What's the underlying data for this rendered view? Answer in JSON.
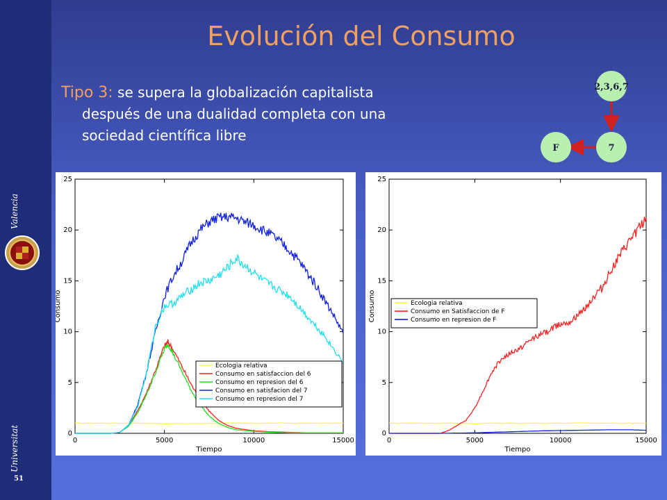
{
  "sidebar": {
    "university_word1": "Universitat",
    "university_word2": "Valencia",
    "page_number": "51",
    "seal_icon": "university-seal-icon"
  },
  "title": "Evolución del Consumo",
  "subtitle": {
    "tipo_label": "Tipo 3:",
    "line1_rest": " se supera la globalización capitalista",
    "line2": "después de una dualidad completa con una",
    "line3": "sociedad científica libre"
  },
  "flow_diagram": {
    "nodes": [
      {
        "id": "top",
        "label": "2,3,6,7"
      },
      {
        "id": "seven",
        "label": "7"
      },
      {
        "id": "f",
        "label": "F"
      }
    ],
    "edges": [
      [
        "top",
        "seven"
      ],
      [
        "seven",
        "f"
      ]
    ],
    "node_color": "#b8f0b0",
    "arrow_color": "#d02020"
  },
  "chart_data": [
    {
      "type": "line",
      "xlabel": "Tiempo",
      "ylabel": "Consumo",
      "xlim": [
        0,
        15000
      ],
      "ylim": [
        0,
        25
      ],
      "xticks": [
        0,
        5000,
        10000,
        15000
      ],
      "yticks": [
        0,
        5,
        10,
        15,
        20,
        25
      ],
      "legend_position": "bottom-right",
      "series": [
        {
          "name": "Ecologia relativa",
          "color": "#ffff40",
          "x": [
            0,
            2000,
            4000,
            5000,
            6000,
            8000,
            10000,
            12000,
            14000,
            15000
          ],
          "y": [
            1.0,
            1.0,
            1.0,
            0.95,
            0.95,
            1.0,
            1.0,
            1.0,
            1.0,
            1.0
          ]
        },
        {
          "name": "Consumo en satisfaccion del 6",
          "color": "#ff2020",
          "x": [
            0,
            2000,
            2500,
            3000,
            3500,
            4000,
            4500,
            5000,
            5200,
            5500,
            6000,
            6500,
            7000,
            7500,
            8000,
            8500,
            9000,
            10000,
            11000,
            12000,
            13000,
            14000,
            15000
          ],
          "y": [
            0,
            0,
            0.1,
            0.8,
            2.2,
            4.0,
            6.2,
            8.6,
            9.0,
            8.2,
            6.5,
            4.8,
            3.3,
            2.2,
            1.3,
            0.8,
            0.5,
            0.25,
            0.15,
            0.1,
            0.05,
            0.05,
            0.05
          ]
        },
        {
          "name": "Consumo en represion del 6",
          "color": "#20e020",
          "x": [
            0,
            2000,
            2500,
            3000,
            3500,
            4000,
            4500,
            5000,
            5200,
            5500,
            6000,
            6500,
            7000,
            7500,
            8000,
            8500,
            9000,
            10000,
            11000,
            12000,
            13000,
            14000,
            15000
          ],
          "y": [
            0,
            0,
            0.1,
            0.7,
            2.0,
            3.8,
            6.0,
            8.3,
            8.8,
            7.8,
            6.0,
            4.2,
            2.8,
            1.7,
            1.0,
            0.6,
            0.35,
            0.2,
            0.1,
            0.05,
            0.05,
            0.05,
            0.05
          ]
        },
        {
          "name": "Consumo en satisfacion del 7",
          "color": "#1020e0",
          "x": [
            0,
            2000,
            2500,
            3000,
            3500,
            4000,
            4500,
            5000,
            5500,
            6000,
            6500,
            7000,
            7500,
            8000,
            8500,
            9000,
            9500,
            10000,
            10500,
            11000,
            11500,
            12000,
            12500,
            13000,
            13500,
            14000,
            14500,
            15000
          ],
          "y": [
            0,
            0,
            0.1,
            0.8,
            2.8,
            6.0,
            10.0,
            13.5,
            15.5,
            17.0,
            18.8,
            20.0,
            20.8,
            21.2,
            21.3,
            21.2,
            20.8,
            20.5,
            20.0,
            19.5,
            18.8,
            18.0,
            17.0,
            15.8,
            14.5,
            13.0,
            11.5,
            9.8
          ]
        },
        {
          "name": "Consumo en represion del 7",
          "color": "#20e0f0",
          "x": [
            0,
            2000,
            2500,
            3000,
            3500,
            4000,
            4500,
            5000,
            5500,
            6000,
            6500,
            7000,
            7500,
            8000,
            8500,
            9000,
            9500,
            10000,
            10500,
            11000,
            11500,
            12000,
            12500,
            13000,
            13500,
            14000,
            14500,
            15000
          ],
          "y": [
            0,
            0,
            0.1,
            0.8,
            2.6,
            6.0,
            10.5,
            12.5,
            12.8,
            13.5,
            14.2,
            14.8,
            15.0,
            15.5,
            16.2,
            17.2,
            16.5,
            15.8,
            15.0,
            14.5,
            14.0,
            13.5,
            12.5,
            11.5,
            10.5,
            9.5,
            8.2,
            7.0
          ]
        }
      ]
    },
    {
      "type": "line",
      "xlabel": "Tiempo",
      "ylabel": "Consumo",
      "xlim": [
        0,
        15000
      ],
      "ylim": [
        0,
        25
      ],
      "xticks": [
        0,
        5000,
        10000,
        15000
      ],
      "yticks": [
        0,
        5,
        10,
        15,
        20,
        25
      ],
      "legend_position": "middle-left",
      "series": [
        {
          "name": "Ecologia relativa",
          "color": "#ffff40",
          "x": [
            0,
            2000,
            4000,
            5000,
            6000,
            8000,
            10000,
            12000,
            14000,
            15000
          ],
          "y": [
            1.0,
            1.0,
            1.0,
            0.95,
            1.0,
            1.0,
            1.0,
            1.0,
            1.0,
            1.0
          ]
        },
        {
          "name": "Consumo en Satisfaccion de F",
          "color": "#ff2020",
          "x": [
            0,
            3000,
            3500,
            4000,
            4500,
            5000,
            5500,
            6000,
            6500,
            7000,
            7500,
            8000,
            8500,
            9000,
            9500,
            10000,
            10500,
            11000,
            11500,
            12000,
            12500,
            13000,
            13500,
            14000,
            14500,
            15000
          ],
          "y": [
            0,
            0,
            0.3,
            0.8,
            1.3,
            2.5,
            4.2,
            6.0,
            7.2,
            7.8,
            8.2,
            8.8,
            9.5,
            9.8,
            10.3,
            10.8,
            11.0,
            11.5,
            12.5,
            13.5,
            14.5,
            16.2,
            17.5,
            18.8,
            20.0,
            21.2
          ]
        },
        {
          "name": "Consumo en represion de F",
          "color": "#1020e0",
          "x": [
            0,
            3000,
            5000,
            7000,
            9000,
            11000,
            13000,
            14000,
            15000
          ],
          "y": [
            0,
            0,
            0.05,
            0.15,
            0.25,
            0.3,
            0.35,
            0.35,
            0.3
          ]
        }
      ]
    }
  ]
}
